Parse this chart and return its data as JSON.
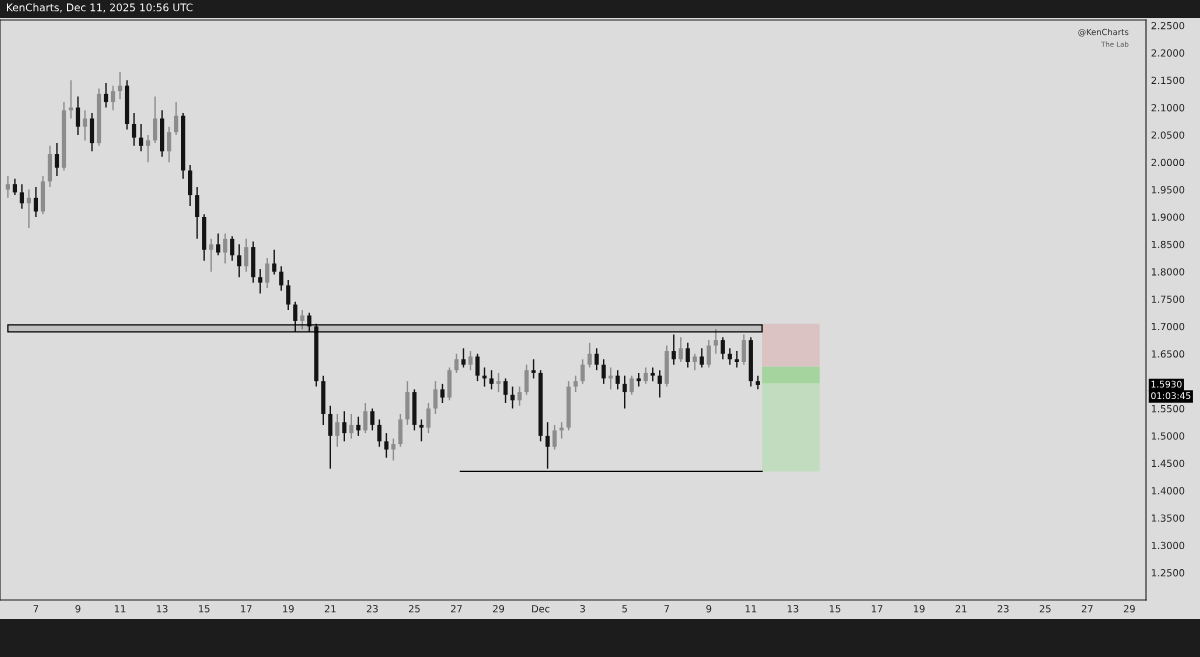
{
  "chart_data": {
    "type": "candlestick",
    "title": "KenCharts, Dec 11, 2025 10:56 UTC",
    "x": [
      "2025-11-05T16:00",
      "2025-11-06T00:00",
      "2025-11-06T08:00",
      "2025-11-06T16:00",
      "2025-11-07T00:00",
      "2025-11-07T08:00",
      "2025-11-07T16:00",
      "2025-11-08T00:00",
      "2025-11-08T08:00",
      "2025-11-08T16:00",
      "2025-11-09T00:00",
      "2025-11-09T08:00",
      "2025-11-09T16:00",
      "2025-11-10T00:00",
      "2025-11-10T08:00",
      "2025-11-10T16:00",
      "2025-11-11T00:00",
      "2025-11-11T08:00",
      "2025-11-11T16:00",
      "2025-11-12T00:00",
      "2025-11-12T08:00",
      "2025-11-12T16:00",
      "2025-11-13T00:00",
      "2025-11-13T08:00",
      "2025-11-13T16:00",
      "2025-11-14T00:00",
      "2025-11-14T08:00",
      "2025-11-14T16:00",
      "2025-11-15T00:00",
      "2025-11-15T08:00",
      "2025-11-15T16:00",
      "2025-11-16T00:00",
      "2025-11-16T08:00",
      "2025-11-16T16:00",
      "2025-11-17T00:00",
      "2025-11-17T08:00",
      "2025-11-17T16:00",
      "2025-11-18T00:00",
      "2025-11-18T08:00",
      "2025-11-18T16:00",
      "2025-11-19T00:00",
      "2025-11-19T08:00",
      "2025-11-19T16:00",
      "2025-11-20T00:00",
      "2025-11-20T08:00",
      "2025-11-20T16:00",
      "2025-11-21T00:00",
      "2025-11-21T08:00",
      "2025-11-21T16:00",
      "2025-11-22T00:00",
      "2025-11-22T08:00",
      "2025-11-22T16:00",
      "2025-11-23T00:00",
      "2025-11-23T08:00",
      "2025-11-23T16:00",
      "2025-11-24T00:00",
      "2025-11-24T08:00",
      "2025-11-24T16:00",
      "2025-11-25T00:00",
      "2025-11-25T08:00",
      "2025-11-25T16:00",
      "2025-11-26T00:00",
      "2025-11-26T08:00",
      "2025-11-26T16:00",
      "2025-11-27T00:00",
      "2025-11-27T08:00",
      "2025-11-27T16:00",
      "2025-11-28T00:00",
      "2025-11-28T08:00",
      "2025-11-28T16:00",
      "2025-11-29T00:00",
      "2025-11-29T08:00",
      "2025-11-29T16:00",
      "2025-11-30T00:00",
      "2025-11-30T08:00",
      "2025-11-30T16:00",
      "2025-12-01T00:00",
      "2025-12-01T08:00",
      "2025-12-01T16:00",
      "2025-12-02T00:00",
      "2025-12-02T08:00",
      "2025-12-02T16:00",
      "2025-12-03T00:00",
      "2025-12-03T08:00",
      "2025-12-03T16:00",
      "2025-12-04T00:00",
      "2025-12-04T08:00",
      "2025-12-04T16:00",
      "2025-12-05T00:00",
      "2025-12-05T08:00",
      "2025-12-05T16:00",
      "2025-12-06T00:00",
      "2025-12-06T08:00",
      "2025-12-06T16:00",
      "2025-12-07T00:00",
      "2025-12-07T08:00",
      "2025-12-07T16:00",
      "2025-12-08T00:00",
      "2025-12-08T08:00",
      "2025-12-08T16:00",
      "2025-12-09T00:00",
      "2025-12-09T08:00",
      "2025-12-09T16:00",
      "2025-12-10T00:00",
      "2025-12-10T08:00",
      "2025-12-10T16:00",
      "2025-12-11T00:00",
      "2025-12-11T08:00"
    ],
    "ohlc": [
      [
        1.95,
        1.975,
        1.935,
        1.96
      ],
      [
        1.96,
        1.97,
        1.94,
        1.945
      ],
      [
        1.945,
        1.96,
        1.915,
        1.925
      ],
      [
        1.925,
        1.95,
        1.88,
        1.935
      ],
      [
        1.935,
        1.955,
        1.9,
        1.91
      ],
      [
        1.91,
        1.975,
        1.905,
        1.965
      ],
      [
        1.965,
        2.03,
        1.955,
        2.015
      ],
      [
        2.015,
        2.035,
        1.975,
        1.99
      ],
      [
        1.99,
        2.11,
        1.985,
        2.095
      ],
      [
        2.095,
        2.15,
        2.08,
        2.1
      ],
      [
        2.1,
        2.12,
        2.05,
        2.065
      ],
      [
        2.065,
        2.095,
        2.04,
        2.08
      ],
      [
        2.08,
        2.09,
        2.02,
        2.035
      ],
      [
        2.035,
        2.135,
        2.03,
        2.125
      ],
      [
        2.125,
        2.145,
        2.1,
        2.11
      ],
      [
        2.11,
        2.14,
        2.095,
        2.13
      ],
      [
        2.13,
        2.165,
        2.115,
        2.14
      ],
      [
        2.14,
        2.15,
        2.06,
        2.07
      ],
      [
        2.07,
        2.09,
        2.03,
        2.045
      ],
      [
        2.045,
        2.07,
        2.02,
        2.03
      ],
      [
        2.03,
        2.05,
        2.0,
        2.04
      ],
      [
        2.04,
        2.12,
        2.035,
        2.08
      ],
      [
        2.08,
        2.095,
        2.01,
        2.02
      ],
      [
        2.02,
        2.065,
        2.0,
        2.055
      ],
      [
        2.055,
        2.11,
        2.05,
        2.085
      ],
      [
        2.085,
        2.09,
        1.97,
        1.985
      ],
      [
        1.985,
        1.995,
        1.92,
        1.94
      ],
      [
        1.94,
        1.955,
        1.86,
        1.9
      ],
      [
        1.9,
        1.905,
        1.82,
        1.84
      ],
      [
        1.84,
        1.86,
        1.8,
        1.85
      ],
      [
        1.85,
        1.87,
        1.83,
        1.835
      ],
      [
        1.835,
        1.87,
        1.815,
        1.86
      ],
      [
        1.86,
        1.865,
        1.82,
        1.83
      ],
      [
        1.83,
        1.85,
        1.79,
        1.81
      ],
      [
        1.81,
        1.86,
        1.8,
        1.845
      ],
      [
        1.845,
        1.855,
        1.78,
        1.79
      ],
      [
        1.79,
        1.805,
        1.76,
        1.78
      ],
      [
        1.78,
        1.825,
        1.77,
        1.815
      ],
      [
        1.815,
        1.84,
        1.795,
        1.8
      ],
      [
        1.8,
        1.81,
        1.765,
        1.775
      ],
      [
        1.775,
        1.785,
        1.73,
        1.74
      ],
      [
        1.74,
        1.745,
        1.69,
        1.71
      ],
      [
        1.71,
        1.73,
        1.695,
        1.72
      ],
      [
        1.72,
        1.725,
        1.69,
        1.7
      ],
      [
        1.7,
        1.705,
        1.59,
        1.6
      ],
      [
        1.6,
        1.61,
        1.52,
        1.54
      ],
      [
        1.54,
        1.555,
        1.44,
        1.5
      ],
      [
        1.5,
        1.54,
        1.48,
        1.525
      ],
      [
        1.525,
        1.545,
        1.49,
        1.505
      ],
      [
        1.505,
        1.54,
        1.495,
        1.52
      ],
      [
        1.52,
        1.535,
        1.5,
        1.51
      ],
      [
        1.51,
        1.56,
        1.505,
        1.545
      ],
      [
        1.545,
        1.55,
        1.51,
        1.52
      ],
      [
        1.52,
        1.53,
        1.48,
        1.49
      ],
      [
        1.49,
        1.505,
        1.46,
        1.475
      ],
      [
        1.475,
        1.495,
        1.455,
        1.485
      ],
      [
        1.485,
        1.54,
        1.48,
        1.53
      ],
      [
        1.53,
        1.6,
        1.52,
        1.58
      ],
      [
        1.58,
        1.585,
        1.51,
        1.52
      ],
      [
        1.52,
        1.53,
        1.49,
        1.515
      ],
      [
        1.515,
        1.56,
        1.505,
        1.55
      ],
      [
        1.55,
        1.6,
        1.54,
        1.585
      ],
      [
        1.585,
        1.595,
        1.56,
        1.57
      ],
      [
        1.57,
        1.625,
        1.565,
        1.62
      ],
      [
        1.62,
        1.65,
        1.615,
        1.64
      ],
      [
        1.64,
        1.66,
        1.625,
        1.63
      ],
      [
        1.63,
        1.655,
        1.62,
        1.645
      ],
      [
        1.645,
        1.65,
        1.6,
        1.61
      ],
      [
        1.61,
        1.625,
        1.59,
        1.605
      ],
      [
        1.605,
        1.62,
        1.585,
        1.595
      ],
      [
        1.595,
        1.615,
        1.58,
        1.6
      ],
      [
        1.6,
        1.605,
        1.56,
        1.575
      ],
      [
        1.575,
        1.59,
        1.55,
        1.565
      ],
      [
        1.565,
        1.59,
        1.555,
        1.58
      ],
      [
        1.58,
        1.63,
        1.575,
        1.62
      ],
      [
        1.62,
        1.64,
        1.605,
        1.615
      ],
      [
        1.615,
        1.62,
        1.49,
        1.5
      ],
      [
        1.5,
        1.525,
        1.44,
        1.48
      ],
      [
        1.48,
        1.52,
        1.475,
        1.51
      ],
      [
        1.51,
        1.525,
        1.495,
        1.515
      ],
      [
        1.515,
        1.6,
        1.51,
        1.59
      ],
      [
        1.59,
        1.61,
        1.58,
        1.6
      ],
      [
        1.6,
        1.64,
        1.595,
        1.63
      ],
      [
        1.63,
        1.67,
        1.625,
        1.65
      ],
      [
        1.65,
        1.66,
        1.62,
        1.63
      ],
      [
        1.63,
        1.64,
        1.595,
        1.605
      ],
      [
        1.605,
        1.625,
        1.585,
        1.61
      ],
      [
        1.61,
        1.62,
        1.585,
        1.595
      ],
      [
        1.595,
        1.61,
        1.55,
        1.58
      ],
      [
        1.58,
        1.61,
        1.575,
        1.605
      ],
      [
        1.605,
        1.615,
        1.59,
        1.6
      ],
      [
        1.6,
        1.625,
        1.595,
        1.615
      ],
      [
        1.615,
        1.625,
        1.6,
        1.61
      ],
      [
        1.61,
        1.62,
        1.57,
        1.595
      ],
      [
        1.595,
        1.665,
        1.59,
        1.655
      ],
      [
        1.655,
        1.685,
        1.63,
        1.64
      ],
      [
        1.64,
        1.68,
        1.635,
        1.66
      ],
      [
        1.66,
        1.67,
        1.625,
        1.635
      ],
      [
        1.635,
        1.65,
        1.62,
        1.645
      ],
      [
        1.645,
        1.66,
        1.625,
        1.63
      ],
      [
        1.63,
        1.675,
        1.625,
        1.665
      ],
      [
        1.665,
        1.695,
        1.65,
        1.675
      ],
      [
        1.675,
        1.68,
        1.64,
        1.65
      ],
      [
        1.65,
        1.66,
        1.63,
        1.64
      ],
      [
        1.64,
        1.655,
        1.625,
        1.635
      ],
      [
        1.635,
        1.685,
        1.63,
        1.675
      ],
      [
        1.675,
        1.68,
        1.59,
        1.6
      ],
      [
        1.6,
        1.61,
        1.585,
        1.593
      ]
    ],
    "colors": [
      "#8c8c8c",
      "#141414",
      "#141414",
      "#8c8c8c",
      "#141414",
      "#8c8c8c",
      "#8c8c8c",
      "#141414",
      "#8c8c8c",
      "#8c8c8c",
      "#141414",
      "#8c8c8c",
      "#141414",
      "#8c8c8c",
      "#141414",
      "#8c8c8c",
      "#8c8c8c",
      "#141414",
      "#141414",
      "#141414",
      "#8c8c8c",
      "#8c8c8c",
      "#141414",
      "#8c8c8c",
      "#8c8c8c",
      "#141414",
      "#141414",
      "#141414",
      "#141414",
      "#8c8c8c",
      "#141414",
      "#8c8c8c",
      "#141414",
      "#141414",
      "#8c8c8c",
      "#141414",
      "#141414",
      "#8c8c8c",
      "#141414",
      "#141414",
      "#141414",
      "#141414",
      "#8c8c8c",
      "#141414",
      "#141414",
      "#141414",
      "#141414",
      "#8c8c8c",
      "#141414",
      "#8c8c8c",
      "#141414",
      "#8c8c8c",
      "#141414",
      "#141414",
      "#141414",
      "#8c8c8c",
      "#8c8c8c",
      "#8c8c8c",
      "#141414",
      "#141414",
      "#8c8c8c",
      "#8c8c8c",
      "#141414",
      "#8c8c8c",
      "#8c8c8c",
      "#141414",
      "#8c8c8c",
      "#141414",
      "#141414",
      "#141414",
      "#8c8c8c",
      "#141414",
      "#141414",
      "#8c8c8c",
      "#8c8c8c",
      "#141414",
      "#141414",
      "#141414",
      "#8c8c8c",
      "#8c8c8c",
      "#8c8c8c",
      "#8c8c8c",
      "#8c8c8c",
      "#8c8c8c",
      "#141414",
      "#141414",
      "#8c8c8c",
      "#141414",
      "#141414",
      "#8c8c8c",
      "#141414",
      "#8c8c8c",
      "#141414",
      "#141414",
      "#8c8c8c",
      "#141414",
      "#8c8c8c",
      "#141414",
      "#8c8c8c",
      "#141414",
      "#8c8c8c",
      "#8c8c8c",
      "#141414",
      "#141414",
      "#141414",
      "#8c8c8c",
      "#141414",
      "#141414"
    ],
    "xlim": [
      "2025-11-05T07:00",
      "2025-12-29T19:00"
    ],
    "xticks": [
      {
        "value": "2025-11-07",
        "label": "7"
      },
      {
        "value": "2025-11-09",
        "label": "9"
      },
      {
        "value": "2025-11-11",
        "label": "11"
      },
      {
        "value": "2025-11-13",
        "label": "13"
      },
      {
        "value": "2025-11-15",
        "label": "15"
      },
      {
        "value": "2025-11-17",
        "label": "17"
      },
      {
        "value": "2025-11-19",
        "label": "19"
      },
      {
        "value": "2025-11-21",
        "label": "21"
      },
      {
        "value": "2025-11-23",
        "label": "23"
      },
      {
        "value": "2025-11-25",
        "label": "25"
      },
      {
        "value": "2025-11-27",
        "label": "27"
      },
      {
        "value": "2025-11-29",
        "label": "29"
      },
      {
        "value": "2025-12-01",
        "label": "Dec"
      },
      {
        "value": "2025-12-03",
        "label": "3"
      },
      {
        "value": "2025-12-05",
        "label": "5"
      },
      {
        "value": "2025-12-07",
        "label": "7"
      },
      {
        "value": "2025-12-09",
        "label": "9"
      },
      {
        "value": "2025-12-11",
        "label": "11"
      },
      {
        "value": "2025-12-13",
        "label": "13"
      },
      {
        "value": "2025-12-15",
        "label": "15"
      },
      {
        "value": "2025-12-17",
        "label": "17"
      },
      {
        "value": "2025-12-19",
        "label": "19"
      },
      {
        "value": "2025-12-21",
        "label": "21"
      },
      {
        "value": "2025-12-23",
        "label": "23"
      },
      {
        "value": "2025-12-25",
        "label": "25"
      },
      {
        "value": "2025-12-27",
        "label": "27"
      },
      {
        "value": "2025-12-29",
        "label": "29"
      }
    ],
    "ylim": [
      1.2,
      2.26
    ],
    "yticks": [
      {
        "value": 1.25,
        "label": "1.2500"
      },
      {
        "value": 1.3,
        "label": "1.3000"
      },
      {
        "value": 1.35,
        "label": "1.3500"
      },
      {
        "value": 1.4,
        "label": "1.4000"
      },
      {
        "value": 1.45,
        "label": "1.4500"
      },
      {
        "value": 1.5,
        "label": "1.5000"
      },
      {
        "value": 1.55,
        "label": "1.5500"
      },
      {
        "value": 1.65,
        "label": "1.6500"
      },
      {
        "value": 1.7,
        "label": "1.7000"
      },
      {
        "value": 1.75,
        "label": "1.7500"
      },
      {
        "value": 1.8,
        "label": "1.8000"
      },
      {
        "value": 1.85,
        "label": "1.8500"
      },
      {
        "value": 1.9,
        "label": "1.9000"
      },
      {
        "value": 1.95,
        "label": "1.9500"
      },
      {
        "value": 2.0,
        "label": "2.0000"
      },
      {
        "value": 2.05,
        "label": "2.0500"
      },
      {
        "value": 2.1,
        "label": "2.1000"
      },
      {
        "value": 2.15,
        "label": "2.1500"
      },
      {
        "value": 2.2,
        "label": "2.2000"
      },
      {
        "value": 2.25,
        "label": "2.2500"
      }
    ],
    "bands": [
      {
        "axis": "y",
        "from": 1.69,
        "to": 1.703,
        "color": "#000000"
      },
      {
        "axis": "y",
        "from": 1.6265,
        "to": 1.705,
        "color": "#dcc3c3"
      },
      {
        "axis": "y",
        "from": 1.435,
        "to": 1.6265,
        "color": "#c2dcc0"
      },
      {
        "axis": "y",
        "from": 1.596,
        "to": 1.6265,
        "color": "#a6d49e"
      }
    ],
    "ref_lines": [
      {
        "axis": "y",
        "value": 1.435,
        "color": "#000000"
      }
    ],
    "annotations": [
      "@KenCharts",
      "The Lab",
      {
        "text": "1.5930",
        "y": 1.593
      },
      "01:03:45"
    ],
    "grid": false,
    "legend": false
  }
}
